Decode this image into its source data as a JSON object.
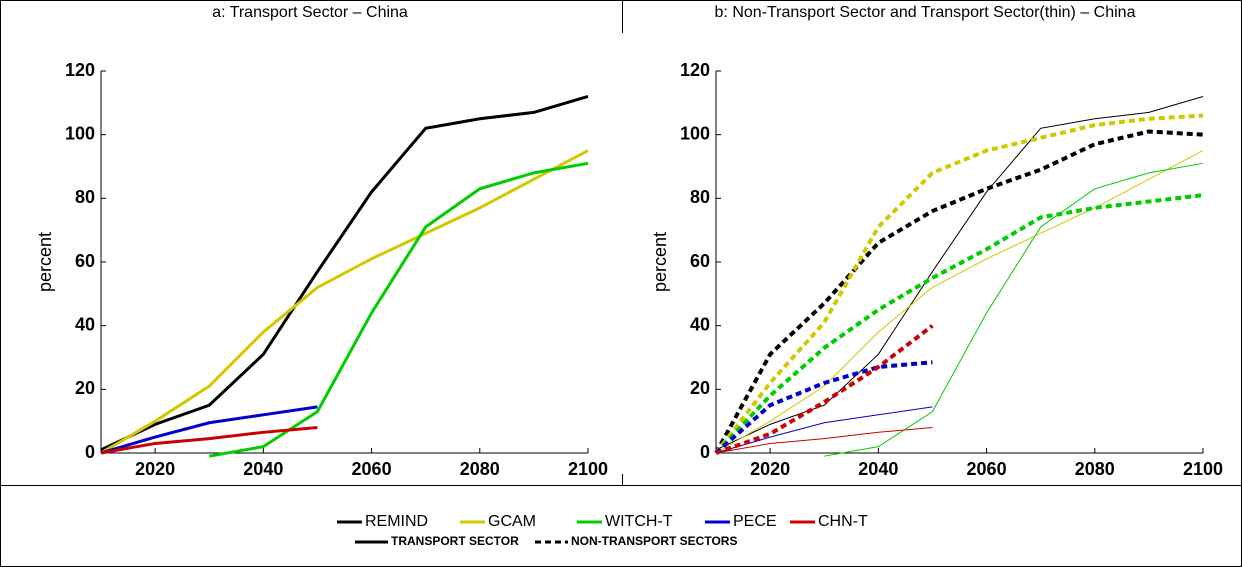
{
  "chart_data": [
    {
      "type": "line",
      "title": "a: Transport Sector – China",
      "y_label": "percent",
      "x": [
        2010,
        2020,
        2030,
        2040,
        2050,
        2060,
        2070,
        2080,
        2090,
        2100
      ],
      "xlim": [
        2010,
        2100
      ],
      "xticks": [
        2020,
        2040,
        2060,
        2080,
        2100
      ],
      "ylim": [
        0,
        120
      ],
      "yticks": [
        0,
        20,
        40,
        60,
        80,
        100,
        120
      ],
      "series": [
        {
          "name": "REMIND",
          "color": "#000000",
          "dashed": false,
          "width": 3,
          "values": [
            1,
            9,
            15,
            31,
            57,
            82,
            102,
            105,
            107,
            112
          ]
        },
        {
          "name": "GCAM",
          "color": "#d2c800",
          "dashed": false,
          "width": 3,
          "values": [
            0,
            10,
            21,
            38,
            52,
            61,
            69,
            77,
            86,
            95
          ]
        },
        {
          "name": "WITCH-T",
          "color": "#00cc00",
          "dashed": false,
          "width": 3,
          "values": [
            null,
            null,
            -1,
            2,
            13,
            44,
            71,
            83,
            88,
            91
          ]
        },
        {
          "name": "PECE",
          "color": "#0000cc",
          "dashed": false,
          "width": 3,
          "values": [
            0,
            5,
            9.5,
            12,
            14.5,
            null,
            null,
            null,
            null,
            null
          ]
        },
        {
          "name": "CHN-T",
          "color": "#cc0000",
          "dashed": false,
          "width": 3,
          "values": [
            0,
            3,
            4.5,
            6.5,
            8,
            null,
            null,
            null,
            null,
            null
          ]
        }
      ]
    },
    {
      "type": "line",
      "title": "b: Non-Transport Sector and Transport Sector(thin) – China",
      "y_label": "percent",
      "x": [
        2010,
        2020,
        2030,
        2040,
        2050,
        2060,
        2070,
        2080,
        2090,
        2100
      ],
      "xlim": [
        2010,
        2100
      ],
      "xticks": [
        2020,
        2040,
        2060,
        2080,
        2100
      ],
      "ylim": [
        0,
        120
      ],
      "yticks": [
        0,
        20,
        40,
        60,
        80,
        100,
        120
      ],
      "series": [
        {
          "name": "REMIND",
          "color": "#000000",
          "dashed": false,
          "width": 1,
          "values": [
            1,
            9,
            15,
            31,
            57,
            82,
            102,
            105,
            107,
            112
          ]
        },
        {
          "name": "GCAM",
          "color": "#d2c800",
          "dashed": false,
          "width": 1,
          "values": [
            0,
            10,
            21,
            38,
            52,
            61,
            69,
            77,
            86,
            95
          ]
        },
        {
          "name": "WITCH-T",
          "color": "#00cc00",
          "dashed": false,
          "width": 1,
          "values": [
            null,
            null,
            -1,
            2,
            13,
            44,
            71,
            83,
            88,
            91
          ]
        },
        {
          "name": "PECE",
          "color": "#0000cc",
          "dashed": false,
          "width": 1,
          "values": [
            0,
            5,
            9.5,
            12,
            14.5,
            null,
            null,
            null,
            null,
            null
          ]
        },
        {
          "name": "CHN-T",
          "color": "#cc0000",
          "dashed": false,
          "width": 1,
          "values": [
            0,
            3,
            4.5,
            6.5,
            8,
            null,
            null,
            null,
            null,
            null
          ]
        },
        {
          "name": "REMIND",
          "color": "#000000",
          "dashed": true,
          "width": 4,
          "values": [
            0,
            31,
            47,
            66,
            76,
            83,
            89,
            97,
            101,
            100
          ]
        },
        {
          "name": "GCAM",
          "color": "#d2c800",
          "dashed": true,
          "width": 4,
          "values": [
            0,
            22,
            41,
            71,
            88,
            95,
            99,
            103,
            105,
            106
          ]
        },
        {
          "name": "WITCH-T",
          "color": "#00cc00",
          "dashed": true,
          "width": 4,
          "values": [
            0,
            18,
            33,
            45,
            55,
            64,
            74,
            77,
            79,
            81
          ]
        },
        {
          "name": "PECE",
          "color": "#0000cc",
          "dashed": true,
          "width": 4,
          "values": [
            0,
            15,
            22,
            27,
            28.5,
            null,
            null,
            null,
            null,
            null
          ]
        },
        {
          "name": "CHN-T",
          "color": "#cc0000",
          "dashed": true,
          "width": 4,
          "values": [
            0,
            6,
            16,
            27,
            40,
            null,
            null,
            null,
            null,
            null
          ]
        }
      ]
    }
  ],
  "legend": {
    "styles": [
      {
        "label": "TRANSPORT SECTOR",
        "dashed": false
      },
      {
        "label": "NON-TRANSPORT SECTORS",
        "dashed": true
      }
    ]
  }
}
